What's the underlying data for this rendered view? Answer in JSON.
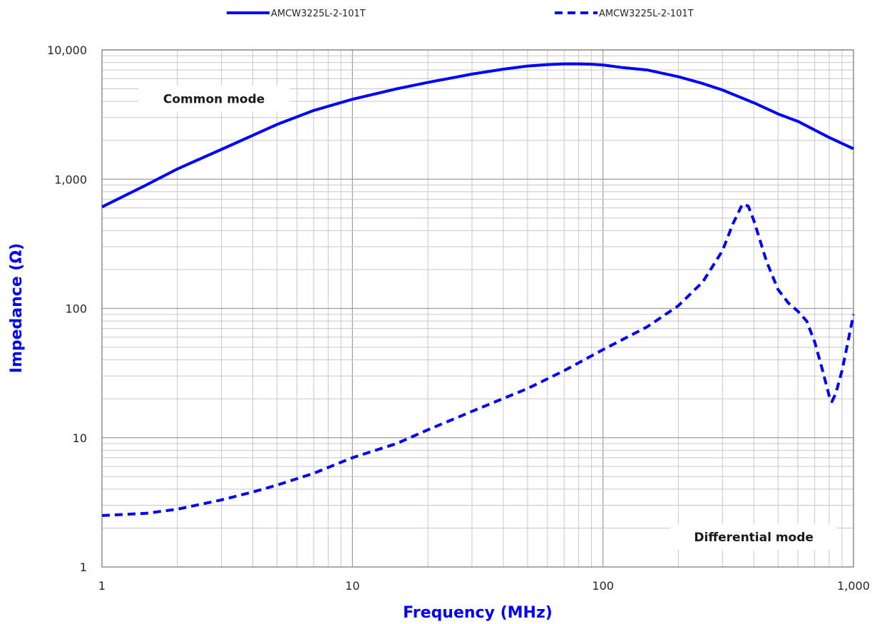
{
  "chart_data": {
    "type": "line",
    "xlabel": "Frequency (MHz)",
    "ylabel": "Impedance (Ω)",
    "x_scale": "log",
    "y_scale": "log",
    "xlim": [
      1,
      1000
    ],
    "ylim": [
      1,
      10000
    ],
    "x_ticks": [
      "1",
      "10",
      "100",
      "1,000"
    ],
    "y_ticks": [
      "1",
      "10",
      "100",
      "1,000",
      "10,000"
    ],
    "grid": true,
    "legend_position": "top-center",
    "accent_color": "#0000ff",
    "series": [
      {
        "name": "AMCW3225L-2-101T",
        "line_style": "solid",
        "color": "#0000ff",
        "points": [
          [
            1,
            610
          ],
          [
            1.5,
            900
          ],
          [
            2,
            1200
          ],
          [
            3,
            1700
          ],
          [
            5,
            2650
          ],
          [
            7,
            3400
          ],
          [
            10,
            4150
          ],
          [
            15,
            5000
          ],
          [
            20,
            5600
          ],
          [
            30,
            6500
          ],
          [
            40,
            7100
          ],
          [
            50,
            7500
          ],
          [
            60,
            7700
          ],
          [
            70,
            7800
          ],
          [
            80,
            7800
          ],
          [
            90,
            7750
          ],
          [
            100,
            7650
          ],
          [
            120,
            7300
          ],
          [
            150,
            7000
          ],
          [
            200,
            6200
          ],
          [
            250,
            5500
          ],
          [
            300,
            4900
          ],
          [
            400,
            3900
          ],
          [
            500,
            3200
          ],
          [
            600,
            2800
          ],
          [
            700,
            2400
          ],
          [
            800,
            2100
          ],
          [
            1000,
            1720
          ]
        ]
      },
      {
        "name": "AMCW3225L-2-101T",
        "line_style": "dashed",
        "color": "#0000ff",
        "points": [
          [
            1,
            2.5
          ],
          [
            1.5,
            2.6
          ],
          [
            2,
            2.8
          ],
          [
            3,
            3.3
          ],
          [
            4,
            3.8
          ],
          [
            5,
            4.3
          ],
          [
            7,
            5.3
          ],
          [
            10,
            7
          ],
          [
            15,
            9
          ],
          [
            20,
            11.5
          ],
          [
            30,
            16
          ],
          [
            50,
            24
          ],
          [
            70,
            33
          ],
          [
            100,
            48
          ],
          [
            150,
            72
          ],
          [
            200,
            105
          ],
          [
            250,
            160
          ],
          [
            300,
            280
          ],
          [
            330,
            450
          ],
          [
            360,
            640
          ],
          [
            380,
            620
          ],
          [
            400,
            480
          ],
          [
            450,
            230
          ],
          [
            500,
            140
          ],
          [
            550,
            110
          ],
          [
            600,
            95
          ],
          [
            650,
            80
          ],
          [
            700,
            55
          ],
          [
            750,
            34
          ],
          [
            800,
            21
          ],
          [
            820,
            19
          ],
          [
            850,
            22
          ],
          [
            900,
            33
          ],
          [
            950,
            55
          ],
          [
            1000,
            90
          ]
        ]
      }
    ],
    "annotations": [
      {
        "text": "Common mode",
        "x": 2.8,
        "y": 4200
      },
      {
        "text": "Differential mode",
        "x": 400,
        "y": 1.7
      }
    ]
  }
}
